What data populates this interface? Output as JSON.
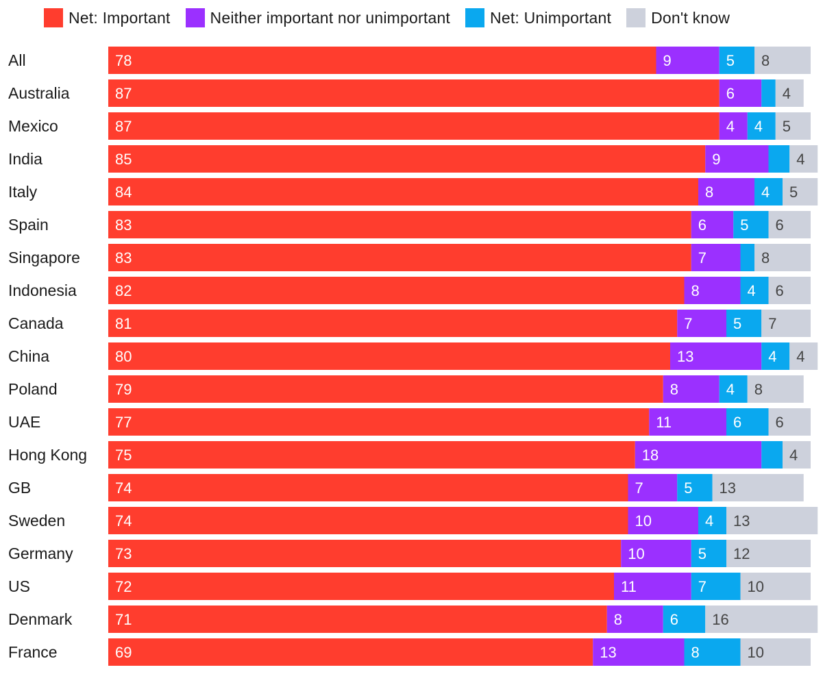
{
  "chart_data": {
    "type": "bar",
    "orientation": "horizontal",
    "stacked": true,
    "title": "",
    "xlabel": "",
    "ylabel": "",
    "xlim": [
      0,
      100
    ],
    "grid": false,
    "legend_position": "top",
    "categories": [
      "All",
      "Australia",
      "Mexico",
      "India",
      "Italy",
      "Spain",
      "Singapore",
      "Indonesia",
      "Canada",
      "China",
      "Poland",
      "UAE",
      "Hong Kong",
      "GB",
      "Sweden",
      "Germany",
      "US",
      "Denmark",
      "France"
    ],
    "series": [
      {
        "name": "Net: Important",
        "color": "#ff3d2e",
        "values": [
          78,
          87,
          87,
          85,
          84,
          83,
          83,
          82,
          81,
          80,
          79,
          77,
          75,
          74,
          74,
          73,
          72,
          71,
          69
        ],
        "labels": [
          "78",
          "87",
          "87",
          "85",
          "84",
          "83",
          "83",
          "82",
          "81",
          "80",
          "79",
          "77",
          "75",
          "74",
          "74",
          "73",
          "72",
          "71",
          "69"
        ]
      },
      {
        "name": "Neither important nor unimportant",
        "color": "#9b30ff",
        "values": [
          9,
          6,
          4,
          9,
          8,
          6,
          7,
          8,
          7,
          13,
          8,
          11,
          18,
          7,
          10,
          10,
          11,
          8,
          13
        ],
        "labels": [
          "9",
          "6",
          "4",
          "9",
          "8",
          "6",
          "7",
          "8",
          "7",
          "13",
          "8",
          "11",
          "18",
          "7",
          "10",
          "10",
          "11",
          "8",
          "13"
        ]
      },
      {
        "name": "Net: Unimportant",
        "color": "#0aa8ef",
        "values": [
          5,
          2,
          4,
          3,
          4,
          5,
          2,
          4,
          5,
          4,
          4,
          6,
          3,
          5,
          4,
          5,
          7,
          6,
          8
        ],
        "labels": [
          "5",
          "",
          "4",
          "",
          "4",
          "5",
          "",
          "4",
          "5",
          "4",
          "4",
          "6",
          "",
          "5",
          "4",
          "5",
          "7",
          "6",
          "8"
        ]
      },
      {
        "name": "Don't know",
        "color": "#cdd1dc",
        "values": [
          8,
          4,
          5,
          4,
          5,
          6,
          8,
          6,
          7,
          4,
          8,
          6,
          4,
          13,
          13,
          12,
          10,
          16,
          10
        ],
        "labels": [
          "8",
          "4",
          "5",
          "4",
          "5",
          "6",
          "8",
          "6",
          "7",
          "4",
          "8",
          "6",
          "4",
          "13",
          "13",
          "12",
          "10",
          "16",
          "10"
        ]
      }
    ]
  }
}
